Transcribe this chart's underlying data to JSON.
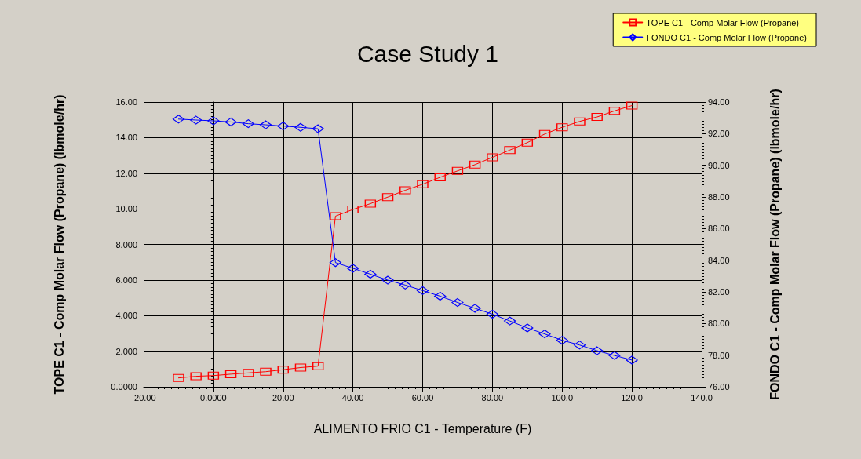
{
  "chart_data": {
    "type": "line",
    "title": "Case Study 1",
    "xlabel": "ALIMENTO FRIO C1 - Temperature (F)",
    "ylabel": "TOPE C1 - Comp Molar Flow (Propane) (lbmole/hr)",
    "y2label": "FONDO C1 - Comp Molar Flow (Propane) (lbmole/hr)",
    "x": [
      -10,
      -5,
      0,
      5,
      10,
      15,
      20,
      25,
      30,
      35,
      40,
      45,
      50,
      55,
      60,
      65,
      70,
      75,
      80,
      85,
      90,
      95,
      100,
      105,
      110,
      115,
      120
    ],
    "series": [
      {
        "name": "TOPE C1 - Comp Molar Flow (Propane)",
        "color": "#ff0000",
        "marker": "square",
        "values": [
          0.5,
          0.59,
          0.63,
          0.71,
          0.78,
          0.85,
          0.96,
          1.08,
          1.16,
          9.59,
          9.96,
          10.29,
          10.66,
          11.04,
          11.38,
          11.77,
          12.13,
          12.48,
          12.89,
          13.3,
          13.72,
          14.2,
          14.58,
          14.91,
          15.16,
          15.5,
          15.8
        ]
      },
      {
        "name": "FONDO C1 - Comp Molar Flow (Propane)",
        "color": "#0000ff",
        "marker": "diamond",
        "axis": "y2",
        "values": [
          92.92,
          92.86,
          92.81,
          92.74,
          92.63,
          92.56,
          92.48,
          92.4,
          92.31,
          83.85,
          83.49,
          83.12,
          82.74,
          82.43,
          82.08,
          81.73,
          81.33,
          80.96,
          80.59,
          80.16,
          79.72,
          79.34,
          78.94,
          78.64,
          78.28,
          77.98,
          77.69
        ]
      }
    ],
    "xlim": [
      -20,
      140
    ],
    "xticks": [
      {
        "value": -20,
        "label": "-20.00"
      },
      {
        "value": 0,
        "label": "0.0000"
      },
      {
        "value": 20,
        "label": "20.00"
      },
      {
        "value": 40,
        "label": "40.00"
      },
      {
        "value": 60,
        "label": "60.00"
      },
      {
        "value": 80,
        "label": "80.00"
      },
      {
        "value": 100,
        "label": "100.0"
      },
      {
        "value": 120,
        "label": "120.0"
      },
      {
        "value": 140,
        "label": "140.0"
      }
    ],
    "ylim": [
      0,
      16
    ],
    "yticks": [
      {
        "value": 0,
        "label": "0.0000"
      },
      {
        "value": 2,
        "label": "2.000"
      },
      {
        "value": 4,
        "label": "4.000"
      },
      {
        "value": 6,
        "label": "6.000"
      },
      {
        "value": 8,
        "label": "8.000"
      },
      {
        "value": 10,
        "label": "10.00"
      },
      {
        "value": 12,
        "label": "12.00"
      },
      {
        "value": 14,
        "label": "14.00"
      },
      {
        "value": 16,
        "label": "16.00"
      }
    ],
    "y2lim": [
      76,
      94
    ],
    "y2ticks": [
      {
        "value": 76,
        "label": "76.00"
      },
      {
        "value": 78,
        "label": "78.00"
      },
      {
        "value": 80,
        "label": "80.00"
      },
      {
        "value": 82,
        "label": "82.00"
      },
      {
        "value": 84,
        "label": "84.00"
      },
      {
        "value": 86,
        "label": "86.00"
      },
      {
        "value": 88,
        "label": "88.00"
      },
      {
        "value": 90,
        "label": "90.00"
      },
      {
        "value": 92,
        "label": "92.00"
      },
      {
        "value": 94,
        "label": "94.00"
      }
    ],
    "grid": true,
    "legend": "top right",
    "line_style": "solid"
  }
}
